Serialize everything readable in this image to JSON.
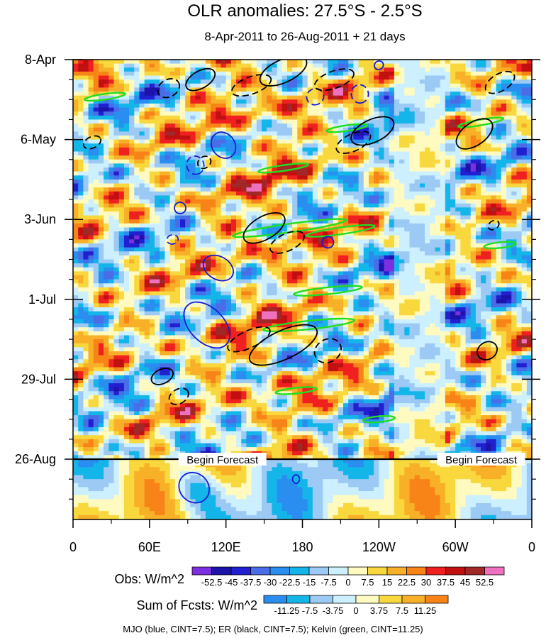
{
  "chart_data": {
    "type": "heatmap",
    "title": "OLR anomalies: 27.5°S - 2.5°S",
    "subtitle": "8-Apr-2011 to 26-Aug-2011 + 21 days",
    "x_ticks": [
      "0",
      "60E",
      "120E",
      "180",
      "120W",
      "60W",
      "0"
    ],
    "x_tick_lon": [
      0,
      60,
      120,
      180,
      240,
      300,
      360
    ],
    "y_ticks": [
      "8-Apr",
      "6-May",
      "3-Jun",
      "1-Jul",
      "29-Jul",
      "26-Aug"
    ],
    "y_tick_day": [
      0,
      28,
      56,
      84,
      112,
      140
    ],
    "xlim": [
      0,
      360
    ],
    "ylim_days": [
      0,
      161
    ],
    "forecast_day": 140,
    "forecast_label": "Begin Forecast",
    "forecast_label_lon": [
      95,
      298
    ],
    "obs_legend": {
      "label": "Obs: W/m^2",
      "levels": [
        "-52.5",
        "-45",
        "-37.5",
        "-30",
        "-22.5",
        "-15",
        "-7.5",
        "0",
        "7.5",
        "15",
        "22.5",
        "30",
        "37.5",
        "45",
        "52.5"
      ],
      "colors": [
        "#7b2fe0",
        "#1c14a8",
        "#2020d0",
        "#4a6ce6",
        "#2a8ef0",
        "#14b6ea",
        "#9ccaf4",
        "#ccf0ff",
        "#fffac0",
        "#f8d83c",
        "#f8b028",
        "#f88418",
        "#f02020",
        "#c01010",
        "#a02828",
        "#f070c0"
      ]
    },
    "fcst_legend": {
      "label": "Sum of Fcsts: W/m^2",
      "levels": [
        "-11.25",
        "-7.5",
        "-3.75",
        "0",
        "3.75",
        "7.5",
        "11.25"
      ],
      "colors": [
        "#2a8ef0",
        "#14b6ea",
        "#9ccaf4",
        "#ccf0ff",
        "#fffac0",
        "#f8d83c",
        "#f8b028",
        "#f88418"
      ]
    },
    "footer": "MJO (blue, CINT=7.5); ER (black, CINT=7.5); Kelvin (green, CINT=11.25)",
    "series_colors": {
      "mjo": "#1a1ad0",
      "er": "#000000",
      "kelvin": "#22dd22"
    },
    "mjo_contours": [
      {
        "lon": 114,
        "day": 73,
        "a": 14,
        "b": 4,
        "ang": 30,
        "dashed": false
      },
      {
        "lon": 105,
        "day": 93,
        "a": 24,
        "b": 6,
        "ang": 45,
        "dashed": false
      },
      {
        "lon": 118,
        "day": 30,
        "a": 12,
        "b": 4,
        "ang": 55,
        "dashed": false
      },
      {
        "lon": 96,
        "day": 37,
        "a": 8,
        "b": 3,
        "ang": 70,
        "dashed": true
      },
      {
        "lon": 190,
        "day": 13,
        "a": 7,
        "b": 3,
        "ang": 70,
        "dashed": true
      },
      {
        "lon": 225,
        "day": 12,
        "a": 8,
        "b": 3,
        "ang": 80,
        "dashed": true
      },
      {
        "lon": 200,
        "day": 64,
        "a": 5,
        "b": 2,
        "ang": 20,
        "dashed": false
      },
      {
        "lon": 84,
        "day": 52,
        "a": 5,
        "b": 2,
        "ang": 60,
        "dashed": false
      },
      {
        "lon": 78,
        "day": 63,
        "a": 4,
        "b": 2,
        "ang": 80,
        "dashed": true
      },
      {
        "lon": 95,
        "day": 150,
        "a": 14,
        "b": 5,
        "ang": 45,
        "dashed": false
      },
      {
        "lon": 175,
        "day": 147,
        "a": 3,
        "b": 1.5,
        "ang": 0,
        "dashed": false
      },
      {
        "lon": 240,
        "day": 2,
        "a": 4,
        "b": 1.5,
        "ang": -30,
        "dashed": false
      }
    ],
    "er_contours": [
      {
        "lon": 165,
        "day": 4,
        "a": 22,
        "b": 4,
        "ang": -25,
        "dashed": false
      },
      {
        "lon": 140,
        "day": 9,
        "a": 18,
        "b": 3,
        "ang": -20,
        "dashed": true
      },
      {
        "lon": 100,
        "day": 7,
        "a": 14,
        "b": 3,
        "ang": -30,
        "dashed": false
      },
      {
        "lon": 75,
        "day": 10,
        "a": 10,
        "b": 3,
        "ang": -30,
        "dashed": true
      },
      {
        "lon": 205,
        "day": 7,
        "a": 18,
        "b": 3,
        "ang": -20,
        "dashed": true
      },
      {
        "lon": 235,
        "day": 25,
        "a": 20,
        "b": 4,
        "ang": -25,
        "dashed": false
      },
      {
        "lon": 220,
        "day": 29,
        "a": 16,
        "b": 3,
        "ang": -25,
        "dashed": true
      },
      {
        "lon": 150,
        "day": 59,
        "a": 20,
        "b": 4,
        "ang": -30,
        "dashed": false
      },
      {
        "lon": 168,
        "day": 64,
        "a": 16,
        "b": 3,
        "ang": -25,
        "dashed": true
      },
      {
        "lon": 165,
        "day": 100,
        "a": 32,
        "b": 5,
        "ang": -25,
        "dashed": false
      },
      {
        "lon": 138,
        "day": 98,
        "a": 20,
        "b": 3,
        "ang": -25,
        "dashed": true
      },
      {
        "lon": 200,
        "day": 102,
        "a": 12,
        "b": 4,
        "ang": -30,
        "dashed": true
      },
      {
        "lon": 315,
        "day": 26,
        "a": 18,
        "b": 4,
        "ang": -35,
        "dashed": false
      },
      {
        "lon": 335,
        "day": 8,
        "a": 14,
        "b": 3,
        "ang": -30,
        "dashed": true
      },
      {
        "lon": 325,
        "day": 102,
        "a": 9,
        "b": 3,
        "ang": -30,
        "dashed": false
      },
      {
        "lon": 83,
        "day": 118,
        "a": 9,
        "b": 2.5,
        "ang": -30,
        "dashed": true
      },
      {
        "lon": 70,
        "day": 111,
        "a": 10,
        "b": 2.5,
        "ang": -25,
        "dashed": false
      },
      {
        "lon": 15,
        "day": 29,
        "a": 8,
        "b": 2,
        "ang": -25,
        "dashed": true
      },
      {
        "lon": 103,
        "day": 36,
        "a": 6,
        "b": 2,
        "ang": -35,
        "dashed": true
      },
      {
        "lon": 330,
        "day": 58,
        "a": 5,
        "b": 1.5,
        "ang": -30,
        "dashed": true
      }
    ],
    "kelvin_contours": [
      {
        "lon": 170,
        "day": 59,
        "a": 50,
        "b": 1.5,
        "ang": -8
      },
      {
        "lon": 210,
        "day": 60,
        "a": 30,
        "b": 1.2,
        "ang": -8
      },
      {
        "lon": 185,
        "day": 93,
        "a": 40,
        "b": 1.5,
        "ang": -6
      },
      {
        "lon": 200,
        "day": 81,
        "a": 30,
        "b": 1.2,
        "ang": -6
      },
      {
        "lon": 175,
        "day": 116,
        "a": 18,
        "b": 1.0,
        "ang": -6
      },
      {
        "lon": 240,
        "day": 126,
        "a": 14,
        "b": 1.0,
        "ang": -5
      },
      {
        "lon": 165,
        "day": 38,
        "a": 22,
        "b": 1.0,
        "ang": -8
      },
      {
        "lon": 215,
        "day": 24,
        "a": 18,
        "b": 1.0,
        "ang": -8
      },
      {
        "lon": 25,
        "day": 13,
        "a": 18,
        "b": 1.0,
        "ang": -8
      },
      {
        "lon": 320,
        "day": 22,
        "a": 20,
        "b": 1.0,
        "ang": -10
      },
      {
        "lon": 335,
        "day": 65,
        "a": 14,
        "b": 1.0,
        "ang": -6
      }
    ]
  }
}
